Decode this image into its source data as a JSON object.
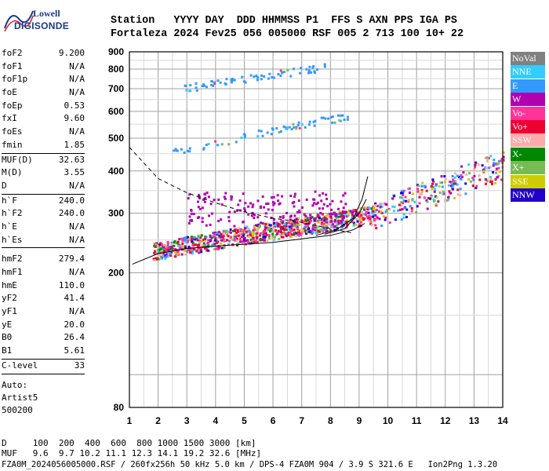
{
  "logo": {
    "line1": "Lowell",
    "line2": "DIGISONDE"
  },
  "header": {
    "row1": "Station   YYYY DAY  DDD HHMMSS P1  FFS S AXN PPS IGA PS",
    "row2": "Fortaleza 2024 Fev25 056 005000 RSF 005 2 713 100 10+ 22"
  },
  "params": [
    {
      "k": "foF2",
      "v": "9.200"
    },
    {
      "k": "foF1",
      "v": "N/A"
    },
    {
      "k": "foF1p",
      "v": "N/A"
    },
    {
      "k": "foE",
      "v": "N/A"
    },
    {
      "k": "foEp",
      "v": "0.53"
    },
    {
      "k": "fxI",
      "v": "9.60"
    },
    {
      "k": "foEs",
      "v": "N/A"
    },
    {
      "k": "fmin",
      "v": "1.85"
    }
  ],
  "params2": [
    {
      "k": "MUF(D)",
      "v": "32.63"
    },
    {
      "k": "M(D)",
      "v": "3.55"
    },
    {
      "k": "D",
      "v": "N/A"
    }
  ],
  "params3": [
    {
      "k": "h`F",
      "v": "240.0"
    },
    {
      "k": "h`F2",
      "v": "240.0"
    },
    {
      "k": "h`E",
      "v": "N/A"
    },
    {
      "k": "h`Es",
      "v": "N/A"
    }
  ],
  "params4": [
    {
      "k": "hmF2",
      "v": "279.4"
    },
    {
      "k": "hmF1",
      "v": "N/A"
    },
    {
      "k": "hmE",
      "v": "110.0"
    },
    {
      "k": "yF2",
      "v": "41.4"
    },
    {
      "k": "yF1",
      "v": "N/A"
    },
    {
      "k": "yE",
      "v": "20.0"
    },
    {
      "k": "B0",
      "v": "26.4"
    },
    {
      "k": "B1",
      "v": "5.61"
    }
  ],
  "params5": [
    {
      "k": "C-level",
      "v": "33"
    }
  ],
  "auto": {
    "l1": "Auto:",
    "l2": "Artist5",
    "l3": "500200"
  },
  "legend": [
    {
      "label": "NoVal",
      "color": "#808080"
    },
    {
      "label": "NNE",
      "color": "#33ccff"
    },
    {
      "label": "E",
      "color": "#3399ff"
    },
    {
      "label": "W",
      "color": "#b000b0"
    },
    {
      "label": "Vo-",
      "color": "#ff3399"
    },
    {
      "label": "Vo+",
      "color": "#ee0033"
    },
    {
      "label": "SSW",
      "color": "#ffaaaa"
    },
    {
      "label": "X-",
      "color": "#008800"
    },
    {
      "label": "X+",
      "color": "#77bb55"
    },
    {
      "label": "SSE",
      "color": "#cccc00"
    },
    {
      "label": "NNW",
      "color": "#2200cc"
    }
  ],
  "bottom": {
    "row1": "D     100  200  400  600  800 1000 1500 3000 [km]",
    "row2": "MUF   9.6  9.7 10.2 11.1 12.3 14.1 19.2 32.6 [MHz]",
    "row3": "FZA0M_2024056005000.RSF / 260fx256h 50 kHz 5.0 km / DPS-4 FZA0M 904 / 3.9 S 321.6 E   Ion2Png 1.3.20"
  },
  "chart_data": {
    "type": "scatter",
    "title": "",
    "xlabel": "",
    "ylabel": "",
    "xlim": [
      1,
      14
    ],
    "ylim": [
      80,
      900
    ],
    "y_scale": "log",
    "x_ticks": [
      1,
      2,
      3,
      4,
      5,
      6,
      7,
      8,
      9,
      10,
      11,
      12,
      13,
      14
    ],
    "y_ticks": [
      80,
      200,
      300,
      400,
      500,
      600,
      700,
      800,
      900
    ],
    "grid": true,
    "legend_placement": "right",
    "clusters": [
      {
        "name": "E",
        "x_range": [
          2.9,
          7.8
        ],
        "h_range": [
          705,
          815
        ],
        "slope": "rising"
      },
      {
        "name": "E",
        "x_range": [
          2.5,
          8.6
        ],
        "h_range": [
          455,
          585
        ],
        "slope": "rising"
      },
      {
        "name": "Vo-",
        "x_range": [
          1.8,
          9.6
        ],
        "h_range": [
          232,
          300
        ],
        "slope": "rising"
      },
      {
        "name": "W",
        "x_range": [
          3.0,
          8.5
        ],
        "h_range": [
          280,
          345
        ],
        "slope": "flat"
      },
      {
        "name": "NNE",
        "x_range": [
          9.4,
          14.0
        ],
        "h_range": [
          290,
          420
        ],
        "slope": "rising"
      }
    ],
    "lines": [
      {
        "style": "dashed",
        "points": [
          [
            1,
            470
          ],
          [
            2,
            380
          ],
          [
            3,
            345
          ],
          [
            4,
            322
          ],
          [
            5,
            303
          ],
          [
            6,
            290
          ],
          [
            7,
            282
          ],
          [
            8,
            270
          ],
          [
            8.8,
            262
          ]
        ]
      },
      {
        "style": "solid",
        "points": [
          [
            1.1,
            212
          ],
          [
            2,
            228
          ],
          [
            3,
            236
          ],
          [
            4,
            240
          ],
          [
            5,
            243
          ],
          [
            6,
            246
          ],
          [
            7,
            252
          ],
          [
            8,
            258
          ],
          [
            8.8,
            268
          ],
          [
            9.2,
            280
          ]
        ]
      },
      {
        "style": "solid",
        "points": [
          [
            7.5,
            258
          ],
          [
            8.2,
            268
          ],
          [
            8.8,
            290
          ],
          [
            9.1,
            330
          ],
          [
            9.3,
            385
          ]
        ]
      },
      {
        "style": "solid",
        "points": [
          [
            7.8,
            260
          ],
          [
            8.5,
            270
          ],
          [
            9.0,
            300
          ],
          [
            9.25,
            330
          ]
        ]
      }
    ]
  }
}
